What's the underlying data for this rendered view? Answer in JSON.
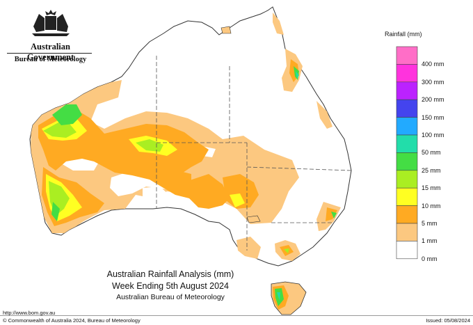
{
  "branding": {
    "logo_icon": "coat-of-arms-icon",
    "government": "Australian Government",
    "bureau": "Bureau of Meteorology"
  },
  "map": {
    "title_line1": "Australian Rainfall Analysis (mm)",
    "title_line2": "Week Ending 5th August 2024",
    "title_line3": "Australian Bureau of Meteorology"
  },
  "legend": {
    "title": "Rainfall (mm)",
    "bins": [
      {
        "label": "",
        "color": "#ff6ec7"
      },
      {
        "label": "400 mm",
        "color": "#ff33dd"
      },
      {
        "label": "300 mm",
        "color": "#bb22ff"
      },
      {
        "label": "200 mm",
        "color": "#4444ee"
      },
      {
        "label": "150 mm",
        "color": "#22aaff"
      },
      {
        "label": "100 mm",
        "color": "#22ddaa"
      },
      {
        "label": "50 mm",
        "color": "#44dd44"
      },
      {
        "label": "25 mm",
        "color": "#aaee22"
      },
      {
        "label": "15 mm",
        "color": "#ffff22"
      },
      {
        "label": "10 mm",
        "color": "#ffaa22"
      },
      {
        "label": "5 mm",
        "color": "#fcc880"
      },
      {
        "label": "1 mm",
        "color": "#ffffff"
      },
      {
        "label": "0 mm",
        "color": null
      }
    ]
  },
  "footer": {
    "url": "http://www.bom.gov.au",
    "copyright": "© Commonwealth of Australia 2024, Bureau of Meteorology",
    "issued": "Issued: 05/08/2024"
  }
}
